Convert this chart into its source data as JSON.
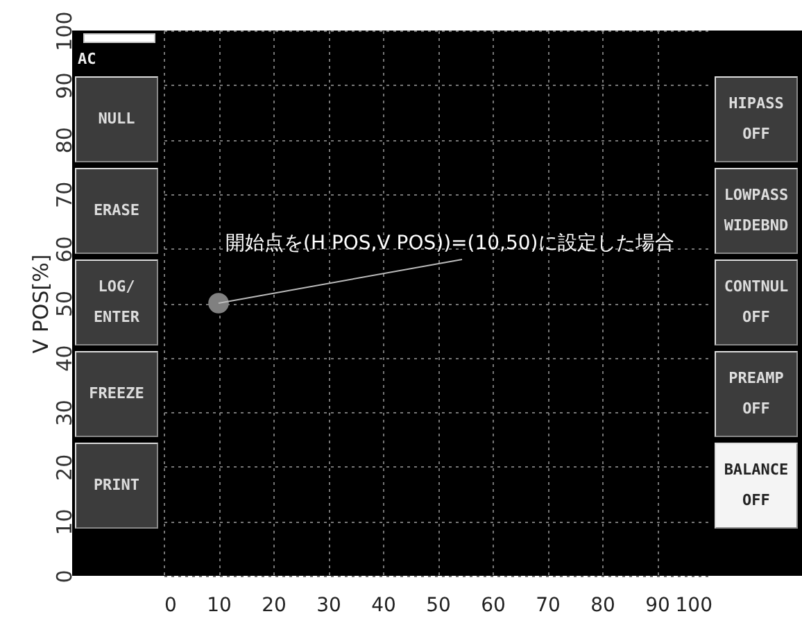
{
  "chart_data": {
    "type": "scatter",
    "ylabel": "V POS[%]",
    "x": [
      10
    ],
    "values": [
      50
    ],
    "color": "#808080",
    "marker": "circle",
    "xlim": [
      0,
      100
    ],
    "ylim": [
      0,
      100
    ],
    "xticks": [
      0,
      10,
      20,
      30,
      40,
      50,
      60,
      70,
      80,
      90,
      100
    ],
    "yticks": [
      0,
      10,
      20,
      30,
      40,
      50,
      60,
      70,
      80,
      90,
      100
    ],
    "grid": true,
    "annotations": [
      {
        "text": "開始点を(H POS,V POS))=(10,50)に設定した場合",
        "x": 10,
        "y": 50
      },
      "AC",
      "NULL",
      "ERASE",
      "LOG/\nENTER",
      "FREEZE",
      "PRINT",
      "HIPASS\nOFF",
      "LOWPASS\nWIDEBND",
      "CONTNUL\nOFF",
      "PREAMP\nOFF",
      "BALANCE\nOFF"
    ]
  }
}
